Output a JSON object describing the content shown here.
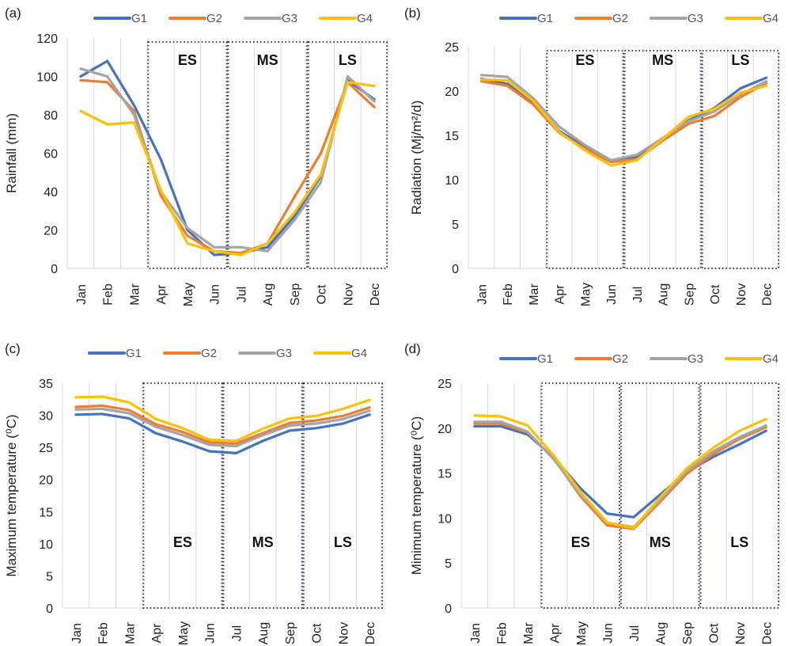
{
  "colors": {
    "G1": "#4472c4",
    "G2": "#ed7d31",
    "G3": "#a5a5a5",
    "G4": "#ffc000"
  },
  "chart_data": [
    {
      "panel": "(a)",
      "type": "line",
      "ylabel": "Rainfall (mm)",
      "ylim": [
        0,
        120
      ],
      "ytick_step": 20,
      "grid": "vertical",
      "legend": "top",
      "categories": [
        "Jan",
        "Feb",
        "Mar",
        "Apr",
        "May",
        "Jun",
        "Jul",
        "Aug",
        "Sep",
        "Oct",
        "Nov",
        "Dec"
      ],
      "season_boxes": [
        {
          "label": "ES",
          "from": "Apr",
          "to": "Jun"
        },
        {
          "label": "MS",
          "from": "Jul",
          "to": "Sep"
        },
        {
          "label": "LS",
          "from": "Oct",
          "to": "Dec"
        }
      ],
      "series": [
        {
          "name": "G1",
          "values": [
            100,
            108,
            85,
            57,
            20,
            7,
            8,
            11,
            27,
            48,
            98,
            88
          ]
        },
        {
          "name": "G2",
          "values": [
            98,
            97,
            82,
            38,
            17,
            9,
            8,
            13,
            37,
            60,
            97,
            84
          ]
        },
        {
          "name": "G3",
          "values": [
            104,
            100,
            80,
            40,
            21,
            11,
            11,
            9,
            25,
            45,
            100,
            87
          ]
        },
        {
          "name": "G4",
          "values": [
            82,
            75,
            76,
            41,
            13,
            9,
            7,
            13,
            29,
            49,
            97,
            95
          ]
        }
      ]
    },
    {
      "panel": "(b)",
      "type": "line",
      "ylabel": "Radiation (Mj/m²/d)",
      "ylim": [
        0,
        25
      ],
      "ytick_step": 5,
      "grid": "vertical",
      "legend": "top",
      "categories": [
        "Jan",
        "Feb",
        "Mar",
        "Apr",
        "May",
        "Jun",
        "Jul",
        "Aug",
        "Sep",
        "Oct",
        "Nov",
        "Dec"
      ],
      "season_boxes": [
        {
          "label": "ES",
          "from": "Apr",
          "to": "Jun"
        },
        {
          "label": "MS",
          "from": "Jul",
          "to": "Sep"
        },
        {
          "label": "LS",
          "from": "Oct",
          "to": "Dec"
        }
      ],
      "series": [
        {
          "name": "G1",
          "values": [
            21.4,
            20.8,
            18.8,
            15.5,
            13.7,
            12.1,
            12.6,
            14.6,
            16.7,
            18.1,
            20.3,
            21.5
          ]
        },
        {
          "name": "G2",
          "values": [
            21.1,
            20.6,
            18.5,
            15.3,
            13.5,
            12.0,
            12.3,
            14.4,
            16.3,
            17.2,
            19.3,
            20.9
          ]
        },
        {
          "name": "G3",
          "values": [
            21.8,
            21.6,
            19.2,
            16.0,
            13.9,
            12.2,
            12.8,
            14.7,
            16.6,
            17.7,
            19.6,
            21.1
          ]
        },
        {
          "name": "G4",
          "values": [
            21.3,
            21.2,
            18.9,
            15.4,
            13.3,
            11.6,
            12.2,
            14.6,
            17.1,
            18.0,
            19.8,
            20.6
          ]
        }
      ]
    },
    {
      "panel": "(c)",
      "type": "line",
      "ylabel": "Maximum temperature (⁰C)",
      "ylim": [
        0,
        35
      ],
      "ytick_step": 5,
      "grid": "vertical",
      "legend": "top",
      "categories": [
        "Jan",
        "Feb",
        "Mar",
        "Apr",
        "May",
        "Jun",
        "Jul",
        "Aug",
        "Sep",
        "Oct",
        "Nov",
        "Dec"
      ],
      "season_boxes": [
        {
          "label": "ES",
          "from": "Apr",
          "to": "Jun"
        },
        {
          "label": "MS",
          "from": "Jul",
          "to": "Sep"
        },
        {
          "label": "LS",
          "from": "Oct",
          "to": "Dec"
        }
      ],
      "series": [
        {
          "name": "G1",
          "values": [
            30.1,
            30.2,
            29.5,
            27.2,
            25.9,
            24.4,
            24.1,
            26.0,
            27.6,
            28.0,
            28.7,
            30.1
          ]
        },
        {
          "name": "G2",
          "values": [
            31.3,
            31.5,
            30.8,
            28.6,
            27.4,
            25.8,
            25.6,
            27.2,
            28.8,
            29.2,
            29.9,
            31.2
          ]
        },
        {
          "name": "G3",
          "values": [
            30.9,
            31.0,
            30.3,
            28.2,
            26.9,
            25.4,
            25.2,
            26.9,
            28.4,
            28.7,
            29.4,
            30.7
          ]
        },
        {
          "name": "G4",
          "values": [
            32.8,
            32.9,
            32.0,
            29.4,
            28.0,
            26.2,
            26.0,
            27.9,
            29.5,
            29.9,
            31.0,
            32.4
          ]
        }
      ]
    },
    {
      "panel": "(d)",
      "type": "line",
      "ylabel": "Minimum temperature (⁰C)",
      "ylim": [
        0,
        25
      ],
      "ytick_step": 5,
      "grid": "vertical",
      "legend": "top",
      "categories": [
        "Jan",
        "Feb",
        "Mar",
        "Apr",
        "May",
        "Jun",
        "Jul",
        "Aug",
        "Sep",
        "Oct",
        "Nov",
        "Dec"
      ],
      "season_boxes": [
        {
          "label": "ES",
          "from": "Apr",
          "to": "Jun"
        },
        {
          "label": "MS",
          "from": "Jul",
          "to": "Sep"
        },
        {
          "label": "LS",
          "from": "Oct",
          "to": "Dec"
        }
      ],
      "series": [
        {
          "name": "G1",
          "values": [
            20.2,
            20.2,
            19.3,
            16.7,
            13.3,
            10.5,
            10.1,
            12.6,
            15.1,
            16.8,
            18.2,
            19.7
          ]
        },
        {
          "name": "G2",
          "values": [
            20.5,
            20.5,
            19.5,
            16.6,
            12.4,
            9.2,
            8.8,
            11.8,
            14.9,
            17.1,
            18.8,
            20.1
          ]
        },
        {
          "name": "G3",
          "values": [
            20.7,
            20.7,
            19.6,
            16.5,
            12.6,
            9.5,
            9.0,
            12.0,
            15.2,
            17.4,
            19.0,
            20.3
          ]
        },
        {
          "name": "G4",
          "values": [
            21.4,
            21.3,
            20.3,
            16.9,
            12.9,
            9.5,
            8.9,
            12.3,
            15.5,
            17.8,
            19.7,
            21.0
          ]
        }
      ]
    }
  ]
}
